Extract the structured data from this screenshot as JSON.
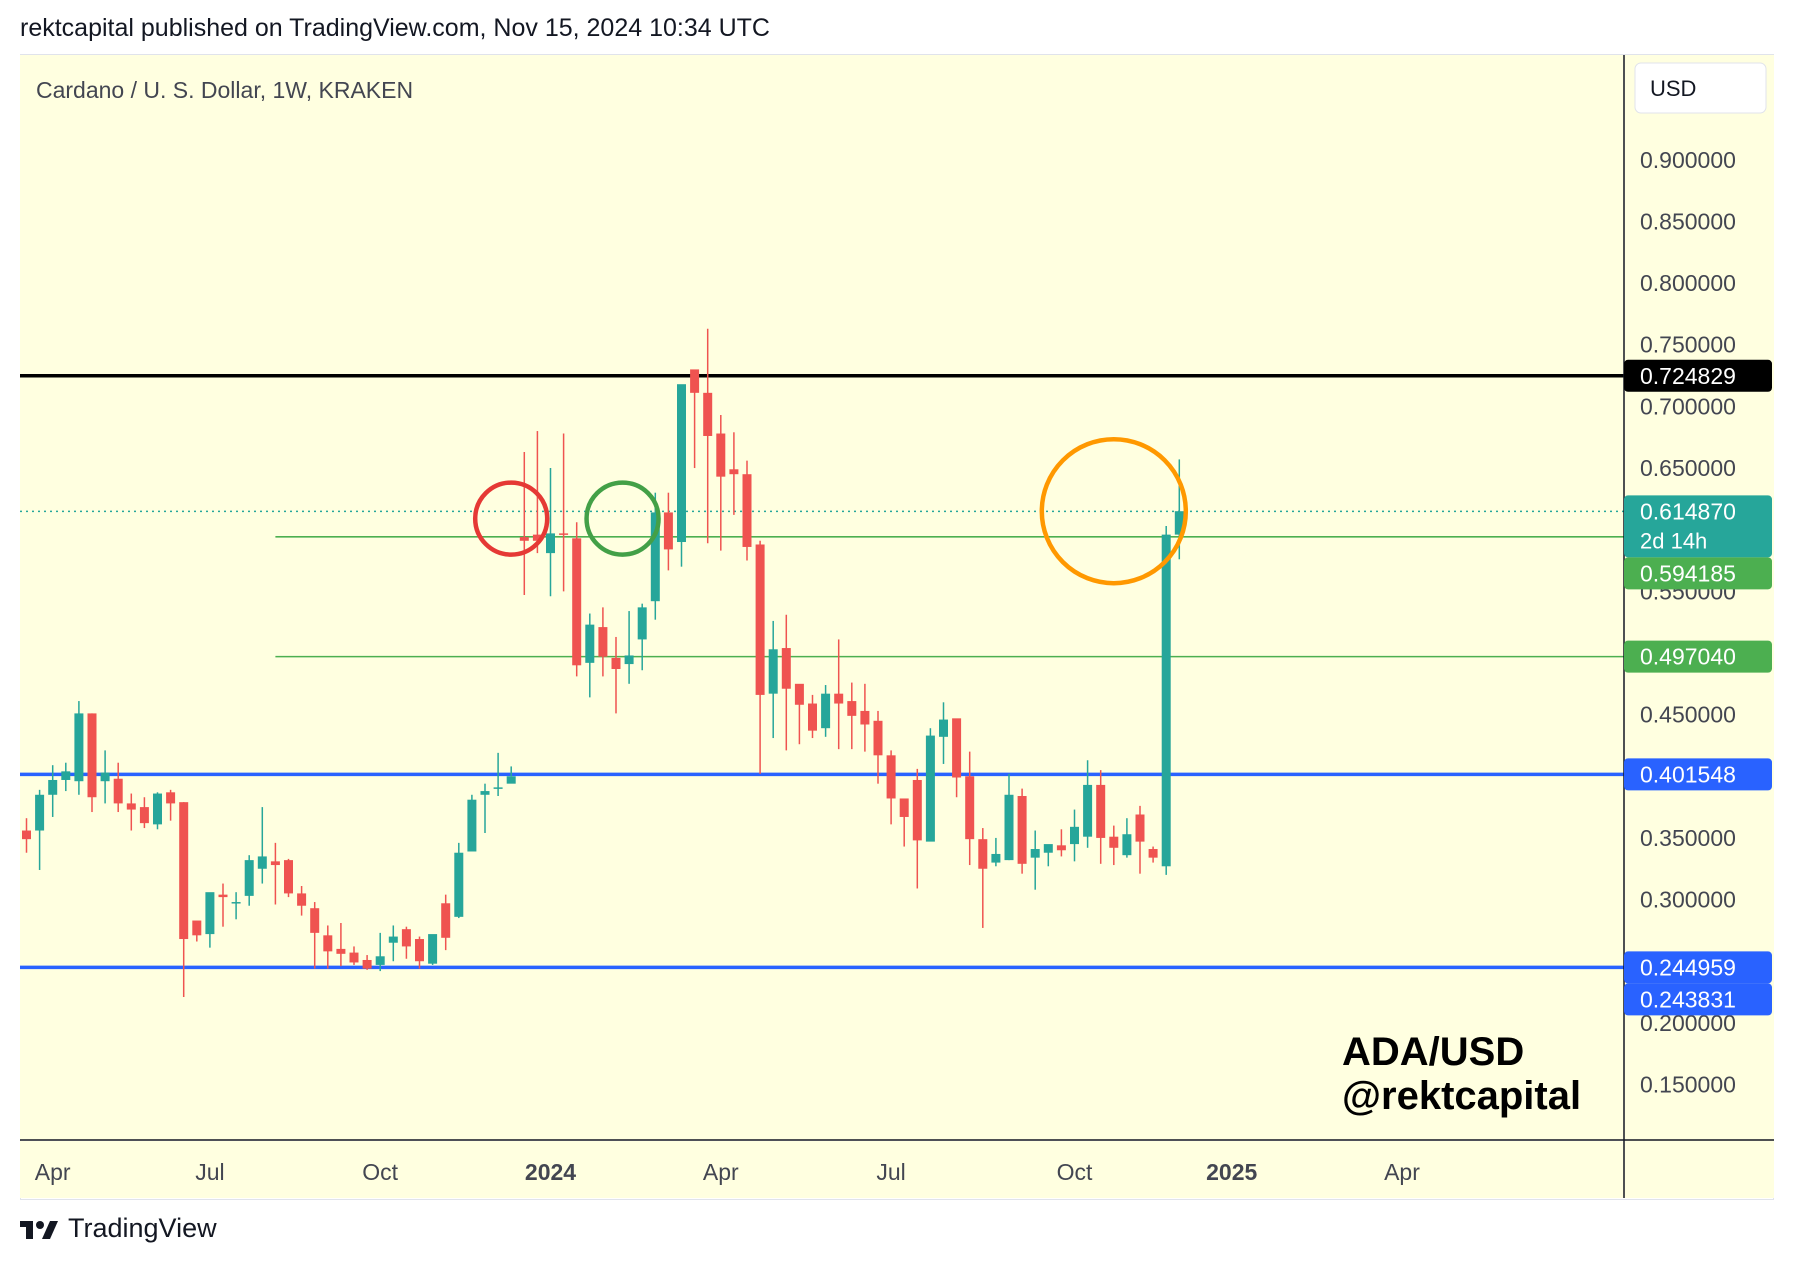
{
  "header": {
    "publish_line": "rektcapital published on TradingView.com, Nov 15, 2024 10:34 UTC"
  },
  "symbol_line": "Cardano / U. S. Dollar, 1W, KRAKEN",
  "currency_button": "USD",
  "watermark": {
    "line1": "ADA/USD",
    "line2": "@rektcapital"
  },
  "footer": {
    "brand": "TradingView",
    "logo_icon": "tradingview-logo-icon"
  },
  "colors": {
    "background": "#ffffe0",
    "up": "#26a69a",
    "down": "#ef5350",
    "resistance": "#000000",
    "support": "#2962ff",
    "range": "#4caf50",
    "circle_red": "#e53935",
    "circle_green": "#43a047",
    "circle_orange": "#ff9800",
    "current_price_label": "#26a69a"
  },
  "chart_data": {
    "type": "candlestick",
    "timeframe": "1W",
    "price_axis": {
      "min": 0.105,
      "max": 0.985,
      "ticks": [
        "0.900000",
        "0.850000",
        "0.800000",
        "0.750000",
        "0.700000",
        "0.650000",
        "0.550000",
        "0.450000",
        "0.350000",
        "0.300000",
        "0.200000",
        "0.150000"
      ]
    },
    "time_axis": {
      "labels": [
        {
          "text": "Apr",
          "week": 2,
          "bold": false
        },
        {
          "text": "Jul",
          "week": 14,
          "bold": false
        },
        {
          "text": "Oct",
          "week": 27,
          "bold": false
        },
        {
          "text": "2024",
          "week": 40,
          "bold": true
        },
        {
          "text": "Apr",
          "week": 53,
          "bold": false
        },
        {
          "text": "Jul",
          "week": 66,
          "bold": false
        },
        {
          "text": "Oct",
          "week": 80,
          "bold": false
        },
        {
          "text": "2025",
          "week": 92,
          "bold": true
        },
        {
          "text": "Apr",
          "week": 105,
          "bold": false
        }
      ]
    },
    "horizontal_lines": [
      {
        "price": 0.724829,
        "label": "0.724829",
        "color": "#000000",
        "style": "solid",
        "from_week": -1
      },
      {
        "price": 0.401548,
        "label": "0.401548",
        "color": "#2962ff",
        "style": "solid",
        "from_week": -1
      },
      {
        "price": 0.244959,
        "label": "0.244959",
        "color": "#2962ff",
        "style": "solid",
        "from_week": -1
      },
      {
        "price": 0.594185,
        "label": "0.594185",
        "color": "#4caf50",
        "style": "thin",
        "from_week": 19
      },
      {
        "price": 0.49704,
        "label": "0.497040",
        "color": "#4caf50",
        "style": "thin",
        "from_week": 19
      }
    ],
    "price_labels": [
      {
        "text": "0.724829",
        "price": 0.724829,
        "bg": "#000000"
      },
      {
        "text": "0.614870",
        "sub": "2d 14h",
        "price": 0.61487,
        "bg": "#26a69a"
      },
      {
        "text": "0.594185",
        "price": 0.594185,
        "bg": "#4caf50"
      },
      {
        "text": "0.497040",
        "price": 0.49704,
        "bg": "#4caf50"
      },
      {
        "text": "0.401548",
        "price": 0.401548,
        "bg": "#2962ff"
      },
      {
        "text": "0.244959",
        "price": 0.244959,
        "bg": "#2962ff"
      },
      {
        "text": "0.243831",
        "price": 0.243831,
        "bg": "#2962ff"
      }
    ],
    "current_price": 0.61487,
    "circles": [
      {
        "week": 37.0,
        "price": 0.609,
        "r": 36,
        "color": "#e53935"
      },
      {
        "week": 45.5,
        "price": 0.609,
        "r": 36,
        "color": "#43a047"
      },
      {
        "week": 83.0,
        "price": 0.615,
        "r": 72,
        "color": "#ff9800"
      }
    ],
    "candles": [
      [
        0.356,
        0.366,
        0.349,
        0.338
      ],
      [
        0.356,
        0.389,
        0.385,
        0.324
      ],
      [
        0.385,
        0.409,
        0.397,
        0.367
      ],
      [
        0.397,
        0.411,
        0.404,
        0.388
      ],
      [
        0.396,
        0.461,
        0.451,
        0.385
      ],
      [
        0.451,
        0.451,
        0.383,
        0.371
      ],
      [
        0.396,
        0.421,
        0.403,
        0.378
      ],
      [
        0.398,
        0.411,
        0.378,
        0.371
      ],
      [
        0.378,
        0.386,
        0.373,
        0.356
      ],
      [
        0.375,
        0.383,
        0.362,
        0.358
      ],
      [
        0.361,
        0.387,
        0.386,
        0.357
      ],
      [
        0.387,
        0.389,
        0.378,
        0.364
      ],
      [
        0.379,
        0.379,
        0.268,
        0.221
      ],
      [
        0.283,
        0.279,
        0.271,
        0.266
      ],
      [
        0.272,
        0.301,
        0.306,
        0.261
      ],
      [
        0.304,
        0.313,
        0.302,
        0.278
      ],
      [
        0.298,
        0.306,
        0.298,
        0.284
      ],
      [
        0.303,
        0.336,
        0.332,
        0.295
      ],
      [
        0.325,
        0.375,
        0.335,
        0.313
      ],
      [
        0.331,
        0.346,
        0.328,
        0.296
      ],
      [
        0.332,
        0.333,
        0.305,
        0.302
      ],
      [
        0.305,
        0.311,
        0.295,
        0.287
      ],
      [
        0.293,
        0.298,
        0.273,
        0.244
      ],
      [
        0.271,
        0.279,
        0.258,
        0.244
      ],
      [
        0.26,
        0.281,
        0.256,
        0.246
      ],
      [
        0.257,
        0.262,
        0.249,
        0.247
      ],
      [
        0.251,
        0.255,
        0.244,
        0.243
      ],
      [
        0.247,
        0.273,
        0.254,
        0.242
      ],
      [
        0.265,
        0.279,
        0.27,
        0.25
      ],
      [
        0.276,
        0.278,
        0.262,
        0.252
      ],
      [
        0.268,
        0.27,
        0.25,
        0.244
      ],
      [
        0.248,
        0.27,
        0.272,
        0.247
      ],
      [
        0.297,
        0.304,
        0.269,
        0.259
      ],
      [
        0.286,
        0.346,
        0.338,
        0.285
      ],
      [
        0.339,
        0.385,
        0.381,
        0.347
      ],
      [
        0.385,
        0.394,
        0.388,
        0.354
      ],
      [
        0.391,
        0.419,
        0.391,
        0.384
      ],
      [
        0.394,
        0.408,
        0.4,
        0.4
      ],
      [
        0.594,
        0.663,
        0.591,
        0.547
      ],
      [
        0.596,
        0.68,
        0.591,
        0.581
      ],
      [
        0.581,
        0.65,
        0.597,
        0.546
      ],
      [
        0.597,
        0.678,
        0.596,
        0.55
      ],
      [
        0.593,
        0.606,
        0.49,
        0.481
      ],
      [
        0.492,
        0.532,
        0.523,
        0.464
      ],
      [
        0.521,
        0.537,
        0.497,
        0.481
      ],
      [
        0.496,
        0.513,
        0.487,
        0.451
      ],
      [
        0.491,
        0.534,
        0.498,
        0.475
      ],
      [
        0.511,
        0.54,
        0.537,
        0.486
      ],
      [
        0.542,
        0.63,
        0.614,
        0.527
      ],
      [
        0.614,
        0.63,
        0.584,
        0.567
      ],
      [
        0.59,
        0.64,
        0.718,
        0.57
      ],
      [
        0.73,
        0.714,
        0.711,
        0.65
      ],
      [
        0.711,
        0.763,
        0.676,
        0.589
      ],
      [
        0.678,
        0.693,
        0.643,
        0.583
      ],
      [
        0.649,
        0.679,
        0.645,
        0.612
      ],
      [
        0.645,
        0.656,
        0.586,
        0.575
      ],
      [
        0.588,
        0.591,
        0.466,
        0.402
      ],
      [
        0.467,
        0.526,
        0.503,
        0.431
      ],
      [
        0.504,
        0.531,
        0.471,
        0.421
      ],
      [
        0.475,
        0.474,
        0.458,
        0.426
      ],
      [
        0.459,
        0.466,
        0.437,
        0.431
      ],
      [
        0.439,
        0.474,
        0.467,
        0.432
      ],
      [
        0.467,
        0.511,
        0.459,
        0.422
      ],
      [
        0.461,
        0.476,
        0.449,
        0.422
      ],
      [
        0.453,
        0.475,
        0.442,
        0.42
      ],
      [
        0.445,
        0.453,
        0.417,
        0.394
      ],
      [
        0.417,
        0.421,
        0.382,
        0.361
      ],
      [
        0.382,
        0.379,
        0.367,
        0.343
      ],
      [
        0.397,
        0.406,
        0.348,
        0.309
      ],
      [
        0.347,
        0.439,
        0.433,
        0.367
      ],
      [
        0.432,
        0.46,
        0.446,
        0.41
      ],
      [
        0.447,
        0.434,
        0.399,
        0.383
      ],
      [
        0.4,
        0.42,
        0.349,
        0.328
      ],
      [
        0.349,
        0.358,
        0.325,
        0.277
      ],
      [
        0.33,
        0.35,
        0.337,
        0.327
      ],
      [
        0.332,
        0.402,
        0.385,
        0.332
      ],
      [
        0.384,
        0.39,
        0.329,
        0.321
      ],
      [
        0.334,
        0.356,
        0.341,
        0.308
      ],
      [
        0.338,
        0.342,
        0.345,
        0.327
      ],
      [
        0.344,
        0.357,
        0.34,
        0.335
      ],
      [
        0.345,
        0.373,
        0.359,
        0.331
      ],
      [
        0.351,
        0.413,
        0.393,
        0.342
      ],
      [
        0.393,
        0.405,
        0.35,
        0.329
      ],
      [
        0.351,
        0.36,
        0.342,
        0.328
      ],
      [
        0.336,
        0.366,
        0.353,
        0.334
      ],
      [
        0.369,
        0.376,
        0.347,
        0.321
      ],
      [
        0.341,
        0.343,
        0.334,
        0.33
      ],
      [
        0.327,
        0.603,
        0.596,
        0.32
      ],
      [
        0.596,
        0.657,
        0.615,
        0.576
      ]
    ]
  }
}
